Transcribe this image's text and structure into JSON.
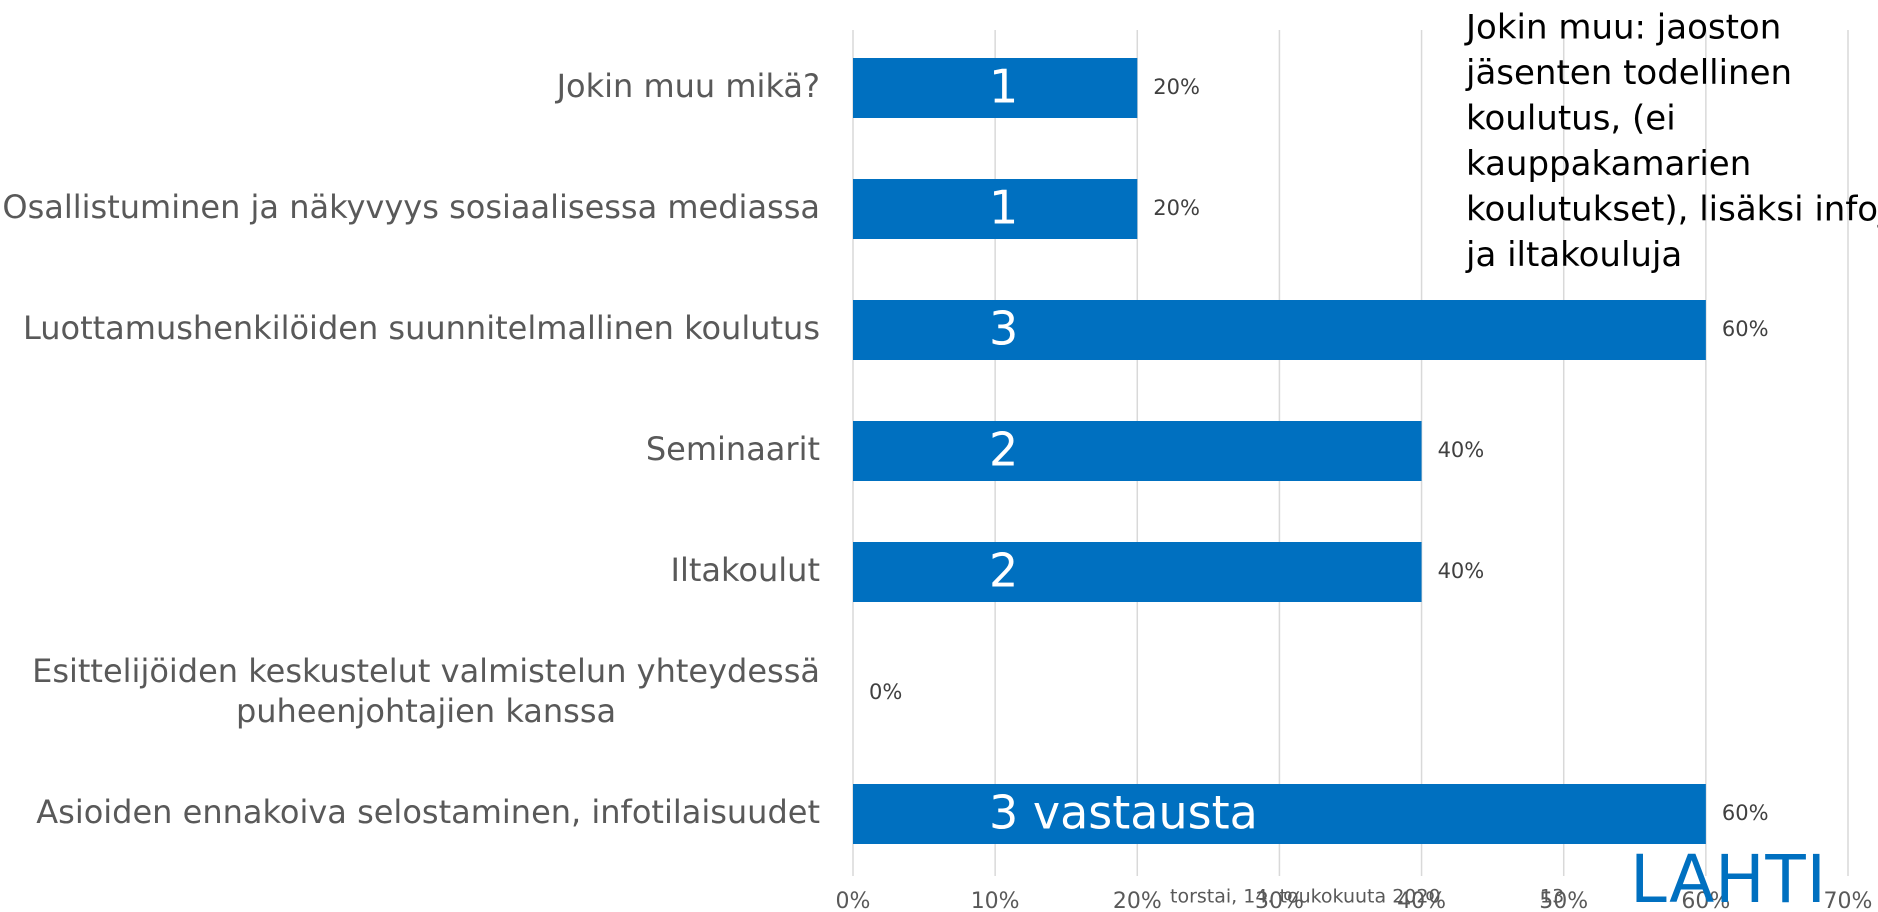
{
  "chart_data": {
    "type": "bar",
    "orientation": "horizontal",
    "categories": [
      "Jokin muu mikä?",
      "Osallistuminen ja näkyvyys sosiaalisessa mediassa",
      "Luottamushenkilöiden suunnitelmallinen koulutus",
      "Seminaarit",
      "Iltakoulut",
      "Esittelijöiden keskustelut valmistelun yhteydessä puheenjohtajien kanssa",
      "Asioiden ennakoiva selostaminen, infotilaisuudet"
    ],
    "values": [
      20,
      20,
      60,
      40,
      40,
      0,
      60
    ],
    "value_labels": [
      "20%",
      "20%",
      "60%",
      "40%",
      "40%",
      "0%",
      "60%"
    ],
    "bar_texts": [
      "1",
      "1",
      "3",
      "2",
      "2",
      null,
      "3 vastausta"
    ],
    "color": "#0070c0",
    "xlim": [
      0,
      70
    ],
    "xticks": [
      {
        "value": 0,
        "label": "0%"
      },
      {
        "value": 10,
        "label": "10%"
      },
      {
        "value": 20,
        "label": "20%"
      },
      {
        "value": 30,
        "label": "30%"
      },
      {
        "value": 40,
        "label": "40%"
      },
      {
        "value": 50,
        "label": "50%"
      },
      {
        "value": 60,
        "label": "60%"
      },
      {
        "value": 70,
        "label": "70%"
      }
    ],
    "grid": true,
    "annotation_lines": [
      "Jokin muu: jaoston",
      "jäsenten todellinen",
      "koulutus, (ei",
      "kauppakamarien",
      "koulutukset), lisäksi infoja",
      "ja iltakouluja"
    ]
  },
  "footer": {
    "date": "torstai, 14. toukokuuta 2020",
    "page": "13",
    "logo": "LAHTI"
  }
}
